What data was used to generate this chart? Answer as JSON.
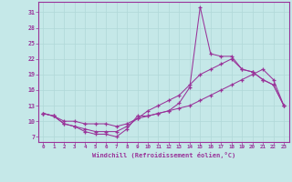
{
  "line_spike": {
    "x": [
      0,
      1,
      2,
      3,
      4,
      5,
      6,
      7,
      8,
      9,
      10,
      11,
      12,
      13,
      14,
      15,
      16,
      17,
      18,
      19,
      20,
      21,
      22,
      23
    ],
    "y": [
      11.5,
      11,
      9.5,
      9,
      8,
      7.5,
      7.5,
      7,
      8.5,
      11,
      11,
      11.5,
      12,
      13.5,
      16.5,
      32,
      23,
      22.5,
      22.5,
      20,
      19.5,
      18,
      17,
      13
    ]
  },
  "line_mid": {
    "x": [
      0,
      1,
      2,
      3,
      4,
      5,
      6,
      7,
      8,
      9,
      10,
      11,
      12,
      13,
      14,
      15,
      16,
      17,
      18,
      19,
      20,
      21,
      22,
      23
    ],
    "y": [
      11.5,
      11,
      9.5,
      9,
      8.5,
      8,
      8,
      8,
      9,
      10.5,
      12,
      13,
      14,
      15,
      17,
      19,
      20,
      21,
      22,
      20,
      19.5,
      18,
      17,
      13
    ]
  },
  "line_flat": {
    "x": [
      0,
      1,
      2,
      3,
      4,
      5,
      6,
      7,
      8,
      9,
      10,
      11,
      12,
      13,
      14,
      15,
      16,
      17,
      18,
      19,
      20,
      21,
      22,
      23
    ],
    "y": [
      11.5,
      11,
      10,
      10,
      9.5,
      9.5,
      9.5,
      9,
      9.5,
      10.5,
      11,
      11.5,
      12,
      12.5,
      13,
      14,
      15,
      16,
      17,
      18,
      19,
      20,
      18,
      13
    ]
  },
  "color": "#993399",
  "bg_color": "#c5e8e8",
  "grid_color": "#b0d8d8",
  "xlabel": "Windchill (Refroidissement éolien,°C)",
  "yticks": [
    7,
    10,
    13,
    16,
    19,
    22,
    25,
    28,
    31
  ],
  "xticks": [
    0,
    1,
    2,
    3,
    4,
    5,
    6,
    7,
    8,
    9,
    10,
    11,
    12,
    13,
    14,
    15,
    16,
    17,
    18,
    19,
    20,
    21,
    22,
    23
  ],
  "ylim": [
    6.0,
    33.0
  ],
  "xlim": [
    -0.5,
    23.5
  ]
}
